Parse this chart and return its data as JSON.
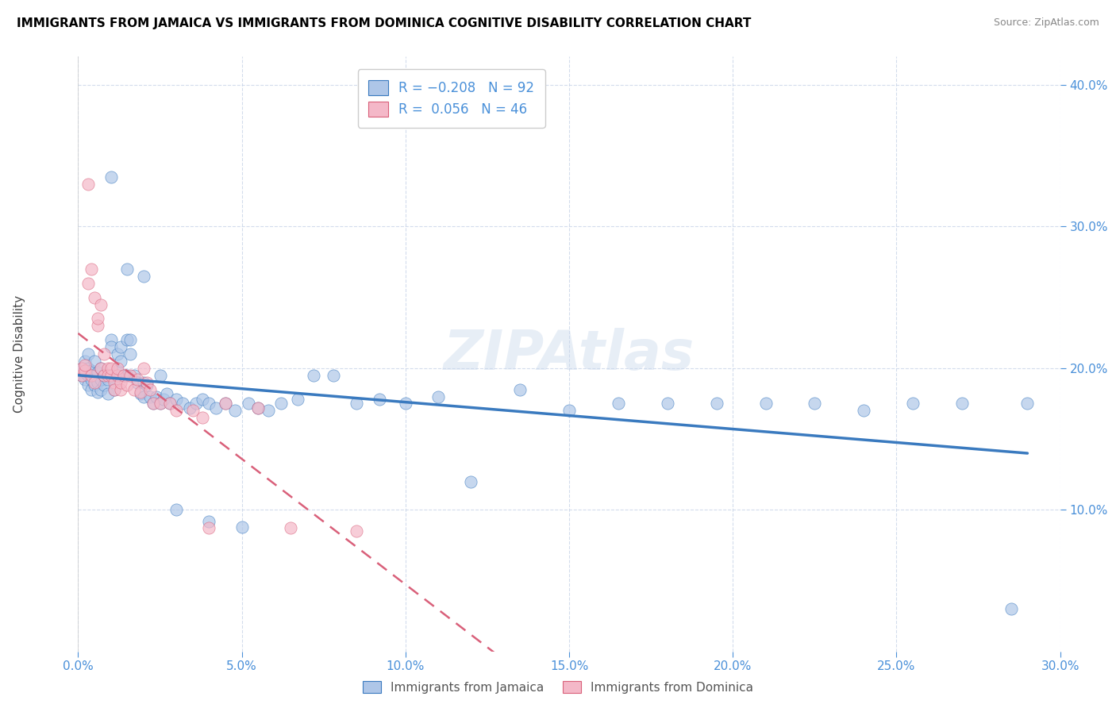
{
  "title": "IMMIGRANTS FROM JAMAICA VS IMMIGRANTS FROM DOMINICA COGNITIVE DISABILITY CORRELATION CHART",
  "source": "Source: ZipAtlas.com",
  "ylabel": "Cognitive Disability",
  "xlim": [
    0.0,
    0.3
  ],
  "ylim": [
    0.0,
    0.42
  ],
  "xticks": [
    0.0,
    0.05,
    0.1,
    0.15,
    0.2,
    0.25,
    0.3
  ],
  "yticks": [
    0.1,
    0.2,
    0.3,
    0.4
  ],
  "ytick_labels": [
    "10.0%",
    "20.0%",
    "30.0%",
    "40.0%"
  ],
  "xtick_labels": [
    "0.0%",
    "5.0%",
    "10.0%",
    "15.0%",
    "20.0%",
    "25.0%",
    "30.0%"
  ],
  "color_jamaica": "#aec6e8",
  "color_dominica": "#f4b8c8",
  "trendline_jamaica": "#3a7abf",
  "trendline_dominica": "#d9607a",
  "watermark": "ZIPAtlas",
  "jamaica_x": [
    0.001,
    0.001,
    0.002,
    0.002,
    0.002,
    0.003,
    0.003,
    0.003,
    0.003,
    0.004,
    0.004,
    0.004,
    0.005,
    0.005,
    0.005,
    0.006,
    0.006,
    0.006,
    0.007,
    0.007,
    0.007,
    0.008,
    0.008,
    0.009,
    0.009,
    0.01,
    0.01,
    0.01,
    0.011,
    0.011,
    0.012,
    0.012,
    0.013,
    0.013,
    0.014,
    0.015,
    0.015,
    0.016,
    0.016,
    0.017,
    0.018,
    0.019,
    0.02,
    0.02,
    0.021,
    0.022,
    0.023,
    0.024,
    0.025,
    0.026,
    0.027,
    0.028,
    0.03,
    0.032,
    0.034,
    0.036,
    0.038,
    0.04,
    0.042,
    0.045,
    0.048,
    0.052,
    0.055,
    0.058,
    0.062,
    0.067,
    0.072,
    0.078,
    0.085,
    0.092,
    0.1,
    0.11,
    0.12,
    0.135,
    0.15,
    0.165,
    0.18,
    0.195,
    0.21,
    0.225,
    0.24,
    0.255,
    0.27,
    0.285,
    0.01,
    0.015,
    0.02,
    0.025,
    0.03,
    0.04,
    0.05,
    0.29
  ],
  "jamaica_y": [
    0.195,
    0.2,
    0.192,
    0.197,
    0.205,
    0.188,
    0.195,
    0.2,
    0.21,
    0.185,
    0.192,
    0.198,
    0.188,
    0.195,
    0.205,
    0.183,
    0.19,
    0.197,
    0.185,
    0.192,
    0.2,
    0.188,
    0.195,
    0.182,
    0.192,
    0.22,
    0.215,
    0.195,
    0.185,
    0.192,
    0.21,
    0.198,
    0.215,
    0.205,
    0.195,
    0.22,
    0.195,
    0.22,
    0.21,
    0.195,
    0.19,
    0.182,
    0.19,
    0.18,
    0.188,
    0.18,
    0.175,
    0.18,
    0.175,
    0.178,
    0.182,
    0.175,
    0.178,
    0.175,
    0.172,
    0.175,
    0.178,
    0.175,
    0.172,
    0.175,
    0.17,
    0.175,
    0.172,
    0.17,
    0.175,
    0.178,
    0.195,
    0.195,
    0.175,
    0.178,
    0.175,
    0.18,
    0.12,
    0.185,
    0.17,
    0.175,
    0.175,
    0.175,
    0.175,
    0.175,
    0.17,
    0.175,
    0.175,
    0.03,
    0.335,
    0.27,
    0.265,
    0.195,
    0.1,
    0.092,
    0.088,
    0.175
  ],
  "dominica_x": [
    0.001,
    0.001,
    0.002,
    0.002,
    0.003,
    0.003,
    0.004,
    0.004,
    0.005,
    0.005,
    0.006,
    0.006,
    0.007,
    0.007,
    0.008,
    0.008,
    0.009,
    0.009,
    0.01,
    0.01,
    0.011,
    0.011,
    0.012,
    0.012,
    0.013,
    0.013,
    0.014,
    0.015,
    0.016,
    0.017,
    0.018,
    0.019,
    0.02,
    0.021,
    0.022,
    0.023,
    0.025,
    0.028,
    0.03,
    0.035,
    0.038,
    0.04,
    0.045,
    0.055,
    0.065,
    0.085
  ],
  "dominica_y": [
    0.195,
    0.2,
    0.198,
    0.202,
    0.26,
    0.33,
    0.195,
    0.27,
    0.25,
    0.19,
    0.23,
    0.235,
    0.2,
    0.245,
    0.21,
    0.195,
    0.2,
    0.195,
    0.195,
    0.2,
    0.19,
    0.185,
    0.195,
    0.2,
    0.185,
    0.19,
    0.195,
    0.188,
    0.195,
    0.185,
    0.192,
    0.183,
    0.2,
    0.19,
    0.185,
    0.175,
    0.175,
    0.175,
    0.17,
    0.17,
    0.165,
    0.087,
    0.175,
    0.172,
    0.087,
    0.085
  ]
}
